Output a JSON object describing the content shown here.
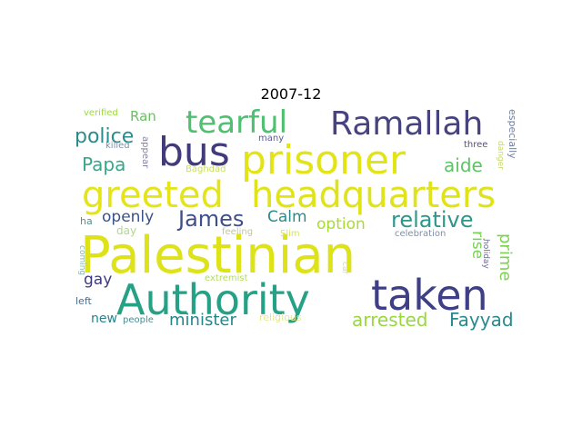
{
  "title": "2007-12",
  "words": [
    {
      "text": "Palestinian",
      "color": "#dde318"
    },
    {
      "text": "greeted",
      "color": "#e5e419"
    },
    {
      "text": "headquarters",
      "color": "#e0e31a"
    },
    {
      "text": "prisoner",
      "color": "#e3e418"
    },
    {
      "text": "Authority",
      "color": "#25a185"
    },
    {
      "text": "taken",
      "color": "#3e3f87"
    },
    {
      "text": "bus",
      "color": "#413b7c"
    },
    {
      "text": "Ramallah",
      "color": "#46437f"
    },
    {
      "text": "tearful",
      "color": "#4fbf70"
    },
    {
      "text": "relative",
      "color": "#2c978a"
    },
    {
      "text": "James",
      "color": "#3f4f88"
    },
    {
      "text": "police",
      "color": "#2a8c8c"
    },
    {
      "text": "Papa",
      "color": "#36a88a"
    },
    {
      "text": "aide",
      "color": "#5cc563"
    },
    {
      "text": "arrested",
      "color": "#98d83e"
    },
    {
      "text": "Fayyad",
      "color": "#29898c"
    },
    {
      "text": "prime",
      "color": "#7cd250"
    },
    {
      "text": "minister",
      "color": "#25868e"
    },
    {
      "text": "openly",
      "color": "#3b5289"
    },
    {
      "text": "Calm",
      "color": "#2c8a8b"
    },
    {
      "text": "option",
      "color": "#a8dc34"
    },
    {
      "text": "rise",
      "color": "#78d152"
    },
    {
      "text": "gay",
      "color": "#3d3a7f"
    },
    {
      "text": "Ran",
      "color": "#67c25f"
    },
    {
      "text": "new",
      "color": "#26848e"
    },
    {
      "text": "verified",
      "color": "#9bd93c"
    },
    {
      "text": "many",
      "color": "#5b5b8e"
    },
    {
      "text": "killed",
      "color": "#7f90a6"
    },
    {
      "text": "appear",
      "color": "#8a7fa8"
    },
    {
      "text": "three",
      "color": "#584c88"
    },
    {
      "text": "especially",
      "color": "#6e81a2"
    },
    {
      "text": "danger",
      "color": "#c6d86b"
    },
    {
      "text": "Baghdad",
      "color": "#c8df63"
    },
    {
      "text": "feeling",
      "color": "#c0c4a7"
    },
    {
      "text": "Slim",
      "color": "#d2e65b"
    },
    {
      "text": "celebration",
      "color": "#7f8fa9"
    },
    {
      "text": "day",
      "color": "#b0d88c"
    },
    {
      "text": "ha",
      "color": "#5a8f94"
    },
    {
      "text": "coming",
      "color": "#8ab3ad"
    },
    {
      "text": "holiday",
      "color": "#6d6b95"
    },
    {
      "text": "car",
      "color": "#d4dd9c"
    },
    {
      "text": "extremist",
      "color": "#b3dc5e"
    },
    {
      "text": "left",
      "color": "#4a6e8d"
    },
    {
      "text": "people",
      "color": "#4a8c92"
    },
    {
      "text": "religious",
      "color": "#e2e88f"
    }
  ]
}
